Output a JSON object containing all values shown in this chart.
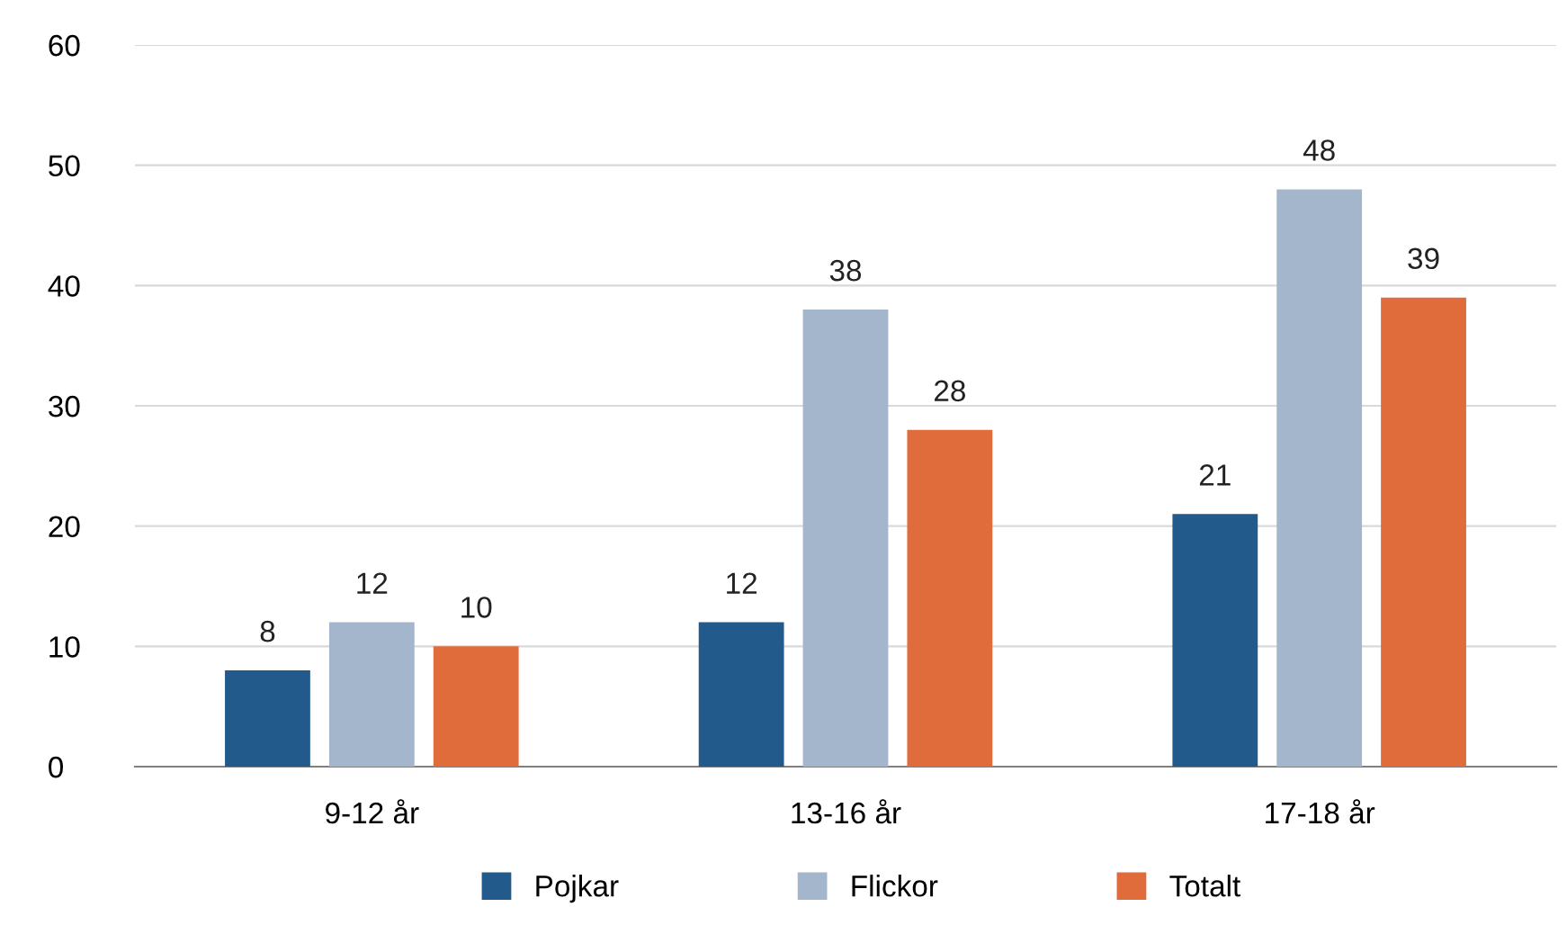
{
  "chart_data": {
    "type": "bar",
    "categories": [
      "9-12 år",
      "13-16 år",
      "17-18 år"
    ],
    "series": [
      {
        "name": "Pojkar",
        "color": "#225a8c",
        "values": [
          8,
          12,
          21
        ]
      },
      {
        "name": "Flickor",
        "color": "#a3b6cc",
        "values": [
          12,
          38,
          48
        ]
      },
      {
        "name": "Totalt",
        "color": "#e06b3b",
        "values": [
          10,
          28,
          39
        ]
      }
    ],
    "ylim": [
      0,
      60
    ],
    "yticks": [
      0,
      10,
      20,
      30,
      40,
      50,
      60
    ],
    "grid": "y",
    "legend": "bottom",
    "data_labels": true
  }
}
